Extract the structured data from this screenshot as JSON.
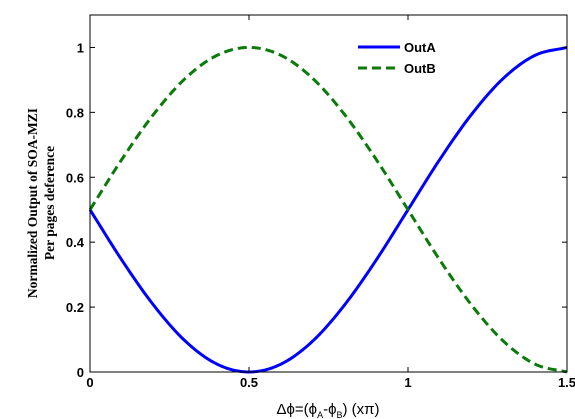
{
  "chart_data": {
    "type": "line",
    "xlabel": "Δφ=(φ_A-φ_B) (xπ)",
    "xlabel_parts": {
      "prefix": "Δϕ=(ϕ",
      "sub_a": "A",
      "middle": "-ϕ",
      "sub_b": "B",
      "suffix": ")  (xπ)"
    },
    "ylabel_line1": "Normalized Output of SOA-MZI",
    "ylabel_line2": "Per pages deference",
    "xlim": [
      0,
      1.5
    ],
    "ylim": [
      0,
      1.1
    ],
    "xticks": [
      0,
      0.5,
      1,
      1.5
    ],
    "xtick_labels": [
      "0",
      "0.5",
      "1",
      "1.5"
    ],
    "yticks": [
      0,
      0.2,
      0.4,
      0.6,
      0.8,
      1
    ],
    "ytick_labels": [
      "0",
      "0.2",
      "0.4",
      "0.6",
      "0.8",
      "1"
    ],
    "grid": false,
    "legend_position": "top-right",
    "series": [
      {
        "name": "OutA",
        "color": "#0000ff",
        "style": "solid",
        "x": [
          0,
          0.1,
          0.2,
          0.3,
          0.4,
          0.5,
          0.6,
          0.7,
          0.8,
          0.9,
          1.0,
          1.1,
          1.2,
          1.3,
          1.4,
          1.5
        ],
        "y": [
          0.5,
          0.345,
          0.206,
          0.095,
          0.024,
          0.0,
          0.024,
          0.095,
          0.206,
          0.345,
          0.5,
          0.655,
          0.794,
          0.905,
          0.976,
          1.0
        ]
      },
      {
        "name": "OutB",
        "color": "#0a7a0a",
        "style": "dashed",
        "x": [
          0,
          0.1,
          0.2,
          0.3,
          0.4,
          0.5,
          0.6,
          0.7,
          0.8,
          0.9,
          1.0,
          1.1,
          1.2,
          1.3,
          1.4,
          1.5
        ],
        "y": [
          0.5,
          0.655,
          0.794,
          0.905,
          0.976,
          1.0,
          0.976,
          0.905,
          0.794,
          0.655,
          0.5,
          0.345,
          0.206,
          0.095,
          0.024,
          0.0
        ]
      }
    ]
  }
}
